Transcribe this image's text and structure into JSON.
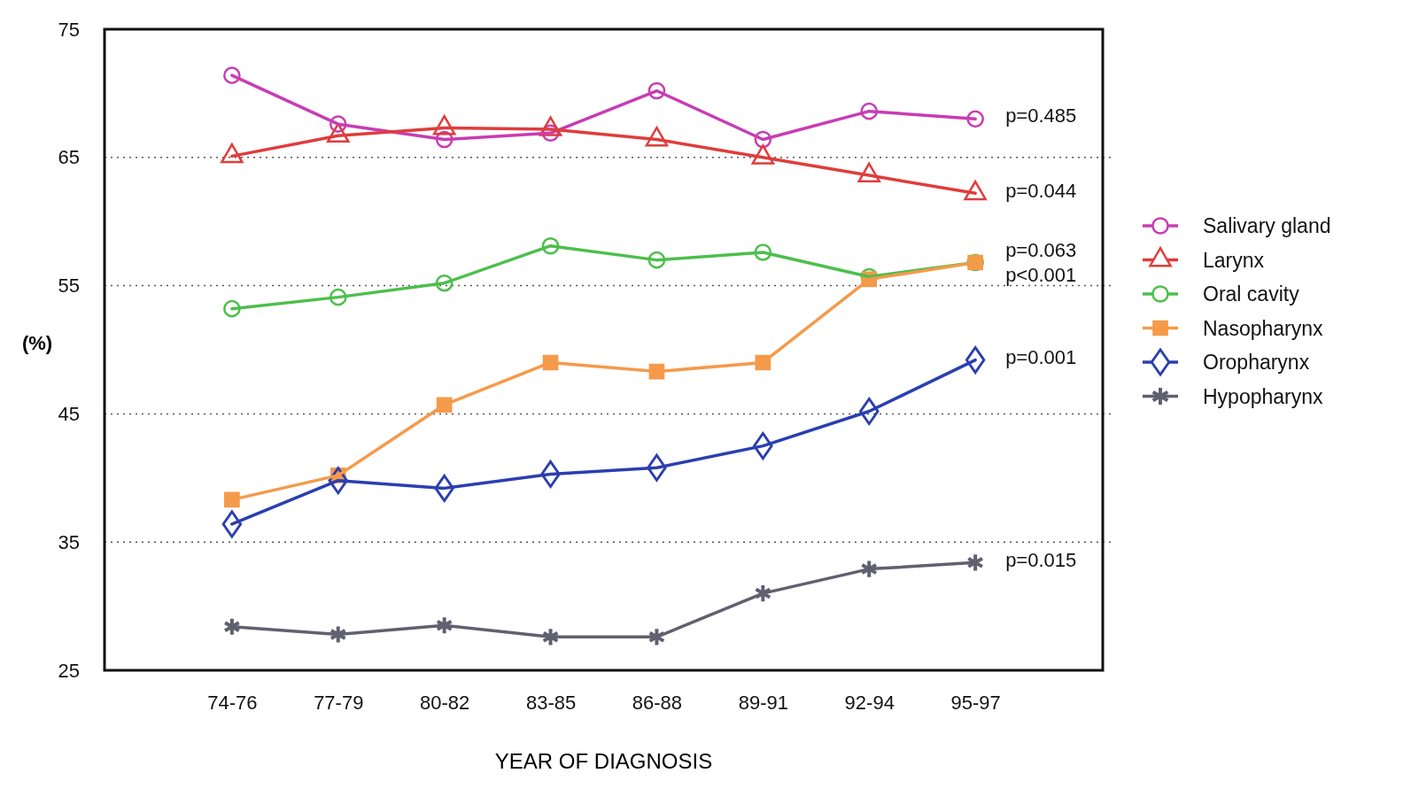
{
  "chart_data": {
    "type": "line",
    "xlabel": "YEAR OF DIAGNOSIS",
    "ylabel": "(%)",
    "categories": [
      "74-76",
      "77-79",
      "80-82",
      "83-85",
      "86-88",
      "89-91",
      "92-94",
      "95-97"
    ],
    "ylim": [
      25,
      75
    ],
    "yticks": [
      25,
      35,
      45,
      55,
      65,
      75
    ],
    "grid": "y",
    "legend": "right",
    "line_style": "solid",
    "series": [
      {
        "name": "Salivary gland",
        "color": "#c83cb4",
        "marker": "circle",
        "values": [
          71.4,
          67.6,
          66.4,
          66.9,
          70.2,
          66.4,
          68.6,
          68.0
        ]
      },
      {
        "name": "Larynx",
        "color": "#e03c3c",
        "marker": "triangle",
        "values": [
          65.1,
          66.7,
          67.3,
          67.2,
          66.4,
          65.0,
          63.6,
          62.2
        ]
      },
      {
        "name": "Oral cavity",
        "color": "#4cbf4c",
        "marker": "circle",
        "values": [
          53.2,
          54.1,
          55.2,
          58.1,
          57.0,
          57.6,
          55.7,
          56.8
        ]
      },
      {
        "name": "Nasopharynx",
        "color": "#f59a4a",
        "marker": "square",
        "values": [
          38.3,
          40.2,
          45.7,
          49.0,
          48.3,
          49.0,
          55.5,
          56.8
        ]
      },
      {
        "name": "Oropharynx",
        "color": "#2a3fb0",
        "marker": "diamond",
        "values": [
          36.4,
          39.8,
          39.2,
          40.3,
          40.8,
          42.5,
          45.2,
          49.2
        ]
      },
      {
        "name": "Hypopharynx",
        "color": "#606070",
        "marker": "cross",
        "values": [
          28.4,
          27.8,
          28.5,
          27.6,
          27.6,
          31.0,
          32.9,
          33.4
        ]
      }
    ],
    "annotations": [
      {
        "text": "p=0.485",
        "x": "95-97",
        "y": 68.3
      },
      {
        "text": "p=0.044",
        "x": "95-97",
        "y": 62.4
      },
      {
        "text": "p=0.063",
        "x": "95-97",
        "y": 56.8
      },
      {
        "text": "p<0.001",
        "x": "95-97",
        "y": 56.8
      },
      {
        "text": "p=0.001",
        "x": "95-97",
        "y": 49.4
      },
      {
        "text": "p=0.015",
        "x": "95-97",
        "y": 33.6
      }
    ]
  }
}
